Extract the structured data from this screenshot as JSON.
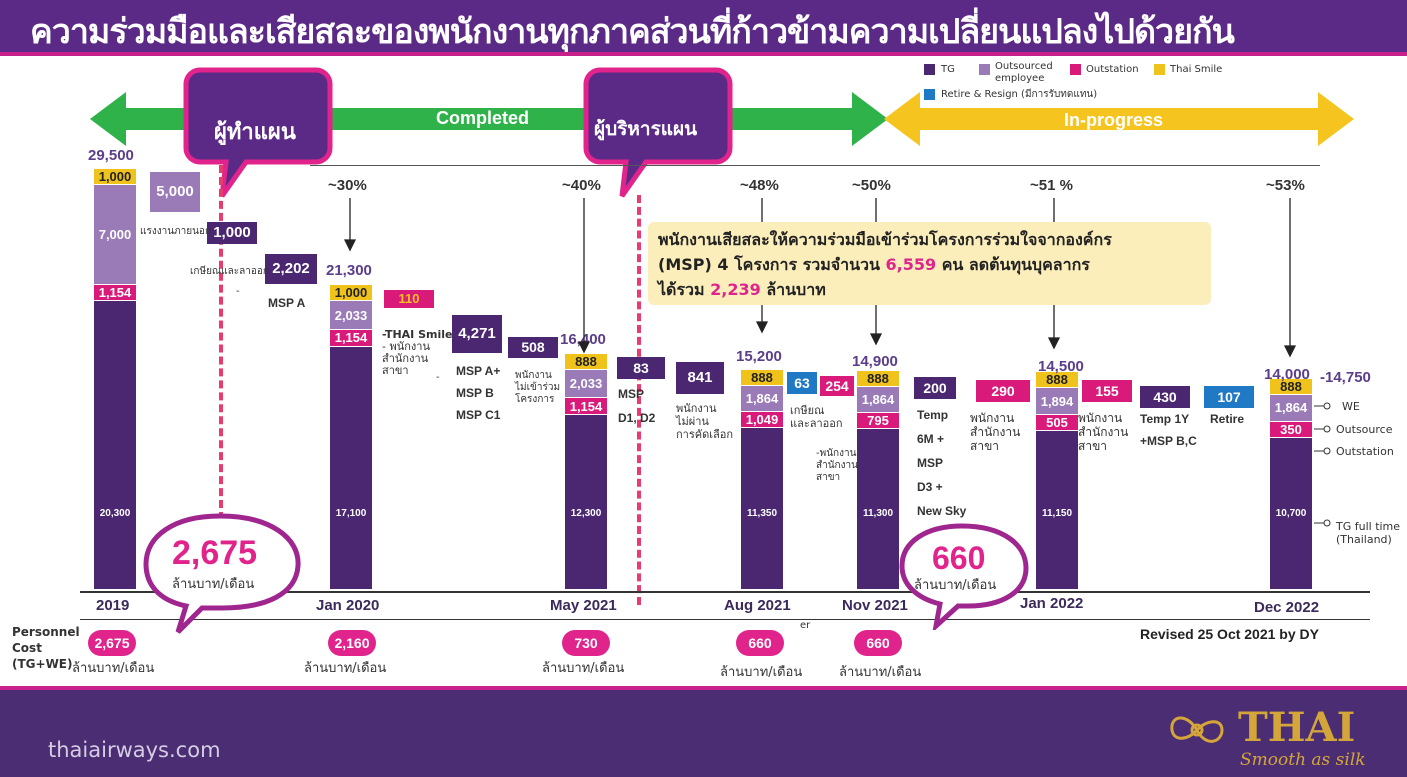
{
  "title": "ความร่วมมือและเสียสละของพนักงานทุกภาคส่วนที่ก้าวข้ามความเปลี่ยนแปลงไปด้วยกัน",
  "colors": {
    "TG": "#4a2770",
    "Outsourced": "#9a7bb8",
    "Outstation": "#d91a7a",
    "Thai Smile": "#f0c21c",
    "Retire": "#1f79c4",
    "completed": "#2fb24a",
    "inprogress": "#f5c41e",
    "pink": "#e0248c"
  },
  "legend": [
    {
      "key": "TG",
      "label": "TG"
    },
    {
      "key": "Outsourced",
      "label": "Outsourced employee"
    },
    {
      "key": "Outstation",
      "label": "Outstation"
    },
    {
      "key": "Thai Smile",
      "label": "Thai Smile"
    },
    {
      "key": "Retire",
      "label": "Retire & Resign (มีการรับทดแทน)"
    }
  ],
  "phases": {
    "completed": "Completed",
    "inprogress": "In-progress"
  },
  "bubbles": {
    "planner": "ผู้ทำแผน",
    "manager": "ผู้บริหารแผน",
    "cost_start": "2,675",
    "cost_start_unit": "ล้านบาท/เดือน",
    "cost_end": "660",
    "cost_end_unit": "ล้านบาท/เดือน"
  },
  "note": {
    "line1": "พนักงานเสียสละให้ความร่วมมือเข้าร่วมโครงการร่วมใจจากองค์กร",
    "line2a": "(MSP) 4 โครงการ  รวมจำนวน ",
    "line2b": "6,559",
    "line2c": " คน ลดต้นทุนบุคลากร",
    "line3a": "ได้รวม ",
    "line3b": "2,239",
    "line3c": "  ล้านบาท"
  },
  "cost_label": {
    "l1": "Personnel",
    "l2": "Cost",
    "l3": "(TG+WE)"
  },
  "cost_unit": "ล้านบาท/เดือน",
  "revised": "Revised 25 Oct 2021 by DY",
  "right_labels": {
    "we": "WE",
    "outsource": "Outsource",
    "outstation": "Outstation",
    "tgfull1": "TG full time",
    "tgfull2": "(Thailand)",
    "range": "-14,750"
  },
  "annotations": {
    "external": "แรงงานภายนอก",
    "retire_c": "เกษียณและลาออก",
    "dash1": "-",
    "msp_a": "MSP A",
    "smile1": "-THAI Smile",
    "smile2": "- พนักงาน",
    "smile3": "สำนักงาน",
    "smile4": "สาขา",
    "dash2": "-",
    "msp1": "MSP A+",
    "msp2": "MSP B",
    "msp3": "MSP C1",
    "notjoin1": "พนักงาน",
    "notjoin2": "ไม่เข้าร่วม",
    "notjoin3": "โครงการ",
    "mspd1": "MSP",
    "mspd2": "D1, D2",
    "notpass1": "พนักงาน",
    "notpass2": "ไม่ผ่าน",
    "notpass3": "การคัดเลือก",
    "ret2a": "เกษียณ",
    "ret2b": "และลาออก",
    "br1": "-พนักงาน",
    "br2": "สำนักงาน",
    "br3": "สาขา",
    "temp1": "Temp",
    "temp2": "6M +",
    "temp3": "MSP",
    "temp4": "D3 +",
    "temp5": "New Sky",
    "br4a": "พนักงาน",
    "br4b": "สำนักงาน",
    "br4c": "สาขา",
    "br5a": "พนักงาน",
    "br5b": "สำนักงาน",
    "br5c": "สาขา",
    "temp1y1": "Temp 1Y",
    "temp1y2": "+MSP B,C",
    "retire": "Retire",
    "er": "er"
  },
  "footer": {
    "url": "thaiairways.com",
    "brand": "THAI",
    "slogan": "Smooth as silk"
  },
  "chart_data": {
    "type": "bar",
    "title": "",
    "categories": [
      "2019",
      "Jan 2020",
      "May 2021",
      "Aug 2021",
      "Nov 2021",
      "Jan 2022",
      "Dec 2022"
    ],
    "totals": [
      "29,500",
      "21,300",
      "16,400",
      "15,200",
      "14,900",
      "14,500",
      "14,000"
    ],
    "reduction_pct": [
      "",
      "~30%",
      "~40%",
      "~48%",
      "~50%",
      "~51 %",
      "~53%"
    ],
    "series": [
      {
        "name": "TG",
        "values": [
          20300,
          17100,
          12300,
          11350,
          11300,
          11150,
          10700
        ]
      },
      {
        "name": "Outstation",
        "values": [
          1154,
          1154,
          1154,
          1049,
          795,
          505,
          350
        ]
      },
      {
        "name": "Outsourced employee",
        "values": [
          7000,
          2033,
          2033,
          1864,
          1864,
          1894,
          1864
        ]
      },
      {
        "name": "Thai Smile",
        "values": [
          1000,
          1000,
          888,
          888,
          888,
          888,
          888
        ]
      }
    ],
    "tg_labels": [
      "20,300",
      "17,100",
      "12,300",
      "11,350",
      "11,300",
      "11,150",
      "10,700"
    ],
    "seg_labels": {
      "Outstation": [
        "1,154",
        "1,154",
        "1,154",
        "1,049",
        "795",
        "505",
        "350"
      ],
      "Outsourced employee": [
        "7,000",
        "2,033",
        "2,033",
        "1,864",
        "1,864",
        "1,894",
        "1,864"
      ],
      "Thai Smile": [
        "1,000",
        "1,000",
        "888",
        "888",
        "888",
        "888",
        "888"
      ]
    },
    "reductions": [
      {
        "label": "5,000",
        "color": "Outsourced"
      },
      {
        "label": "1,000",
        "color": "TG"
      },
      {
        "label": "2,202",
        "color": "TG"
      },
      {
        "label": "110",
        "color": "Thai Smile"
      },
      {
        "label": "4,271",
        "color": "TG"
      },
      {
        "label": "508",
        "color": "TG"
      },
      {
        "label": "83",
        "color": "TG"
      },
      {
        "label": "841",
        "color": "TG"
      },
      {
        "label": "63",
        "color": "Retire"
      },
      {
        "label": "254",
        "color": "Outstation"
      },
      {
        "label": "200",
        "color": "TG"
      },
      {
        "label": "290",
        "color": "Outstation"
      },
      {
        "label": "155",
        "color": "Outstation"
      },
      {
        "label": "430",
        "color": "TG"
      },
      {
        "label": "107",
        "color": "Retire"
      }
    ],
    "personnel_cost": [
      "2,675",
      "2,160",
      "730",
      "660",
      "660"
    ],
    "ylim": [
      0,
      30000
    ]
  }
}
